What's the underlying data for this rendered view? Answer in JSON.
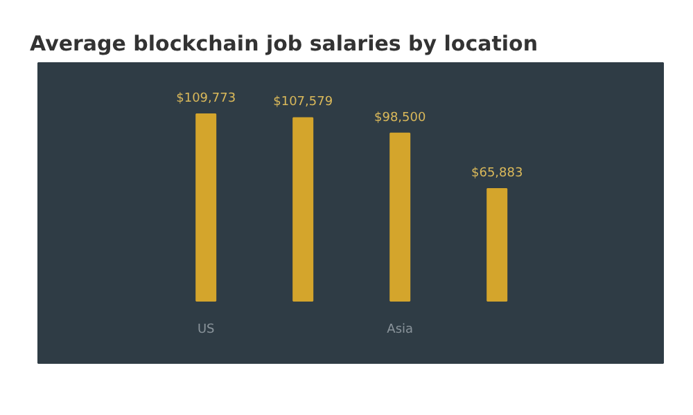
{
  "chart_data": {
    "type": "bar",
    "title": "Average blockchain job salaries by location",
    "categories": [
      "US",
      null,
      "Asia",
      null
    ],
    "values": [
      109773,
      107579,
      98500,
      65883
    ],
    "value_labels": [
      "$109,773",
      "$107,579",
      "$98,500",
      "$65,883"
    ],
    "color": "#d4a52c"
  }
}
